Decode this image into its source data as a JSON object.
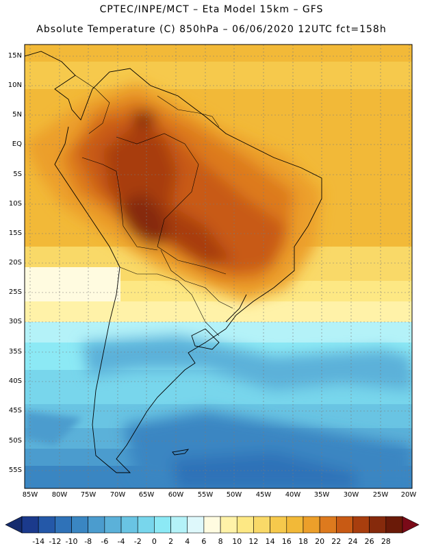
{
  "header": {
    "title_line1": "CPTEC/INPE/MCT –  Eta Model 15km – GFS",
    "title_line2": "Absolute Temperature (C) 850hPa – 06/06/2020 12UTC fct=158h"
  },
  "map": {
    "lat_labels": [
      "15N",
      "10N",
      "5N",
      "EQ",
      "5S",
      "10S",
      "15S",
      "20S",
      "25S",
      "30S",
      "35S",
      "40S",
      "45S",
      "50S",
      "55S"
    ],
    "lon_labels": [
      "85W",
      "80W",
      "75W",
      "70W",
      "65W",
      "60W",
      "55W",
      "50W",
      "45W",
      "40W",
      "35W",
      "30W",
      "25W",
      "20W"
    ]
  },
  "colorbar": {
    "labels": [
      "-14",
      "-12",
      "-10",
      "-8",
      "-6",
      "-4",
      "-2",
      "0",
      "2",
      "4",
      "6",
      "8",
      "10",
      "12",
      "14",
      "16",
      "18",
      "20",
      "22",
      "24",
      "26",
      "28"
    ],
    "colors": [
      "#1b3a8c",
      "#2458a8",
      "#2f72b8",
      "#3a86c2",
      "#4b9cce",
      "#5bb1d9",
      "#69c4e3",
      "#78d6ec",
      "#8ce9f5",
      "#b4f2f8",
      "#def8fb",
      "#fffbe0",
      "#fff2a8",
      "#fde884",
      "#f9d968",
      "#f6c94c",
      "#f2b938",
      "#ec9f2a",
      "#dd7a1e",
      "#c85a14",
      "#a83e0e",
      "#862a0c",
      "#6a1a08"
    ]
  }
}
